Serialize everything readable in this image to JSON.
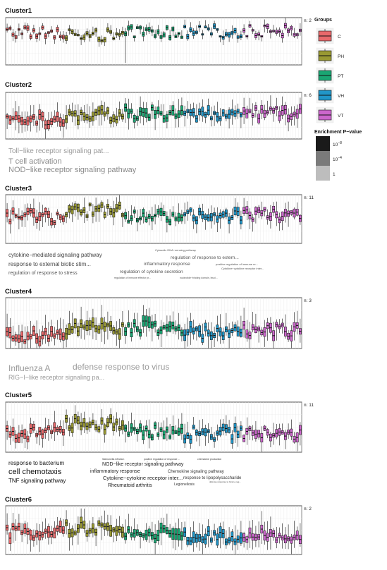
{
  "legend": {
    "groups_title": "Groups",
    "groups": [
      {
        "name": "C",
        "color": "#e8696b"
      },
      {
        "name": "PH",
        "color": "#999933"
      },
      {
        "name": "PT",
        "color": "#1aa673"
      },
      {
        "name": "VH",
        "color": "#2196c8"
      },
      {
        "name": "VT",
        "color": "#cc66cc"
      }
    ],
    "pvalue_title": "Enrichment P−value",
    "pvalue_levels": [
      {
        "label": "10",
        "sup": "−8",
        "color": "#1a1a1a"
      },
      {
        "label": "10",
        "sup": "−4",
        "color": "#7a7a7a"
      },
      {
        "label": "1",
        "sup": "",
        "color": "#bdbdbd"
      }
    ]
  },
  "chart_data": [
    {
      "type": "boxplot",
      "title": "Cluster1",
      "n_label": "n: 2",
      "groups": [
        "C",
        "PH",
        "PT",
        "VH",
        "VT"
      ],
      "samples_per_group": [
        20,
        20,
        20,
        20,
        20
      ],
      "group_levels": [
        0.7,
        0.62,
        0.68,
        0.7,
        0.72
      ],
      "spread": 0.14,
      "solid_fill": false,
      "annotation": "Single sample in group PT extends to ~0.04",
      "terms": []
    },
    {
      "type": "boxplot",
      "title": "Cluster2",
      "n_label": "n: 6",
      "groups": [
        "C",
        "PH",
        "PT",
        "VH",
        "VT"
      ],
      "samples_per_group": [
        20,
        20,
        20,
        20,
        20
      ],
      "group_levels": [
        0.42,
        0.5,
        0.55,
        0.5,
        0.56
      ],
      "spread": 0.28,
      "solid_fill": true,
      "terms": [
        {
          "text": "Toll−like receptor signaling pat...",
          "size": 10,
          "shade": "#9a9a9a"
        },
        {
          "text": "T cell activation",
          "size": 11,
          "shade": "#8a8a8a"
        },
        {
          "text": "NOD−like receptor signaling pathway",
          "size": 11,
          "shade": "#8a8a8a"
        }
      ]
    },
    {
      "type": "boxplot",
      "title": "Cluster3",
      "n_label": "n: 11",
      "groups": [
        "C",
        "PH",
        "PT",
        "VH",
        "VT"
      ],
      "samples_per_group": [
        20,
        20,
        20,
        20,
        20
      ],
      "group_levels": [
        0.55,
        0.68,
        0.55,
        0.6,
        0.6
      ],
      "spread": 0.24,
      "solid_fill": true,
      "terms": [
        {
          "text": "cytokine−mediated signaling pathway",
          "size": 8,
          "shade": "#444444"
        },
        {
          "text": "response to external biotic stim...",
          "size": 8,
          "shade": "#444444"
        },
        {
          "text": "regulation of response to stress",
          "size": 7,
          "shade": "#555555"
        },
        {
          "text": "Cytosolic DNA−sensing pathway",
          "size": 4,
          "shade": "#555555"
        },
        {
          "text": "regulation of response to extern...",
          "size": 6.5,
          "shade": "#555555"
        },
        {
          "text": "inflammatory response",
          "size": 6.5,
          "shade": "#555555"
        },
        {
          "text": "regulation of cytokine secretion",
          "size": 6.5,
          "shade": "#555555"
        },
        {
          "text": "positive regulation of immune re...",
          "size": 4,
          "shade": "#555555"
        },
        {
          "text": "Cytokine−cytokine receptor inter...",
          "size": 4,
          "shade": "#555555"
        },
        {
          "text": "regulation of immune effector pr...",
          "size": 3.5,
          "shade": "#555555"
        },
        {
          "text": "nucleotide−binding domain, leuci...",
          "size": 3.5,
          "shade": "#555555"
        }
      ]
    },
    {
      "type": "boxplot",
      "title": "Cluster4",
      "n_label": "n: 3",
      "groups": [
        "C",
        "PH",
        "PT",
        "VH",
        "VT"
      ],
      "samples_per_group": [
        20,
        20,
        20,
        20,
        20
      ],
      "group_levels": [
        0.25,
        0.4,
        0.42,
        0.32,
        0.35
      ],
      "spread": 0.3,
      "solid_fill": false,
      "terms": [
        {
          "text": "Influenza A",
          "size": 12,
          "shade": "#9a9a9a"
        },
        {
          "text": "defense response to virus",
          "size": 12,
          "shade": "#9a9a9a"
        },
        {
          "text": "RIG−I−like receptor signaling pa...",
          "size": 9,
          "shade": "#9a9a9a"
        }
      ]
    },
    {
      "type": "boxplot",
      "title": "Cluster5",
      "n_label": "n: 11",
      "groups": [
        "C",
        "PH",
        "PT",
        "VH",
        "VT"
      ],
      "samples_per_group": [
        20,
        20,
        20,
        20,
        20
      ],
      "group_levels": [
        0.38,
        0.55,
        0.42,
        0.38,
        0.38
      ],
      "spread": 0.26,
      "solid_fill": true,
      "terms": [
        {
          "text": "response to bacterium",
          "size": 8,
          "shade": "#111111"
        },
        {
          "text": "cell chemotaxis",
          "size": 11,
          "shade": "#111111"
        },
        {
          "text": "TNF signaling pathway",
          "size": 8,
          "shade": "#111111"
        },
        {
          "text": "Salmonella infection",
          "size": 3.5,
          "shade": "#333333"
        },
        {
          "text": "positive regulation of response ...",
          "size": 3.5,
          "shade": "#333333"
        },
        {
          "text": "chemokine production",
          "size": 3.5,
          "shade": "#333333"
        },
        {
          "text": "NOD−like receptor signaling pathway",
          "size": 7,
          "shade": "#222222"
        },
        {
          "text": "inflammatory response",
          "size": 7,
          "shade": "#222222"
        },
        {
          "text": "Chemokine signaling pathway",
          "size": 6,
          "shade": "#333333"
        },
        {
          "text": "Cytokine−cytokine receptor inter...",
          "size": 7.5,
          "shade": "#222222"
        },
        {
          "text": "response to lipopolysaccharide",
          "size": 6,
          "shade": "#333333"
        },
        {
          "text": "Rheumatoid arthritis",
          "size": 7,
          "shade": "#222222"
        },
        {
          "text": "Legionellosis",
          "size": 5,
          "shade": "#333333"
        },
        {
          "text": "defense response to Gram−neg...",
          "size": 3,
          "shade": "#333333"
        }
      ]
    },
    {
      "type": "boxplot",
      "title": "Cluster6",
      "n_label": "n: 2",
      "groups": [
        "C",
        "PH",
        "PT",
        "VH",
        "VT"
      ],
      "samples_per_group": [
        20,
        20,
        20,
        20,
        20
      ],
      "group_levels": [
        0.45,
        0.55,
        0.42,
        0.38,
        0.42
      ],
      "spread": 0.32,
      "solid_fill": false,
      "terms": []
    }
  ]
}
